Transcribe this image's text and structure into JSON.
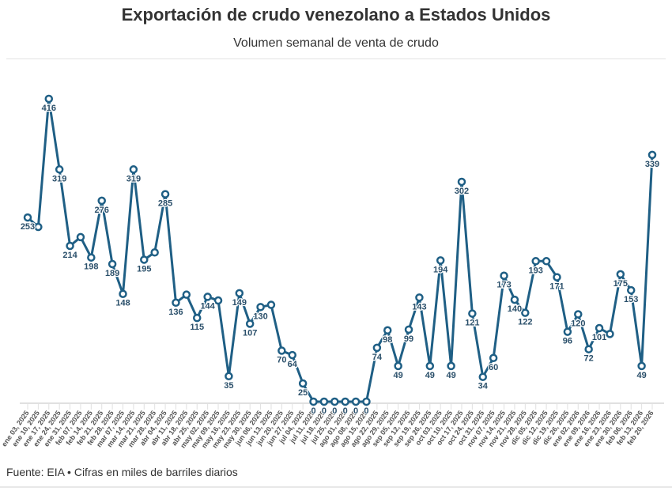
{
  "header": {
    "title": "Exportación de crudo venezolano a Estados Unidos",
    "subtitle": "Volumen semanal de venta de crudo"
  },
  "footer": {
    "source": "Fuente: EIA • Cifras en miles de barriles diarios"
  },
  "colors": {
    "line": "#1f5f85",
    "label": "#2a4f6a",
    "grid": "#e0e0e0"
  },
  "chart_data": {
    "type": "line",
    "title": "Exportación de crudo venezolano a Estados Unidos",
    "subtitle": "Volumen semanal de venta de crudo",
    "xlabel": "",
    "ylabel": "",
    "ylim": [
      0,
      416
    ],
    "grid": false,
    "markers": "hollow-circle",
    "categories": [
      "ene 03, 2025",
      "ene 10, 2025",
      "ene 17, 2025",
      "ene 24, 2025",
      "ene 31, 2025",
      "feb 07, 2025",
      "feb 14, 2025",
      "feb 21, 2025",
      "feb 28, 2025",
      "mar 07, 2025",
      "mar 14, 2025",
      "mar 21, 2025",
      "mar 28, 2025",
      "abr 04, 2025",
      "abr 11, 2025",
      "abr 18, 2025",
      "abr 25, 2025",
      "may 02, 2025",
      "may 09, 2025",
      "may 16, 2025",
      "may 23, 2025",
      "may 30, 2025",
      "jun 06, 2025",
      "jun 13, 2025",
      "jun 20, 2025",
      "jun 27, 2025",
      "jul 04, 2025",
      "jul 11, 2025",
      "jul 18, 2025",
      "jul 25, 2025",
      "ago 01, 2025",
      "ago 08, 2025",
      "ago 15, 2025",
      "ago 22, 2025",
      "ago 29, 2025",
      "sep 05, 2025",
      "sep 12, 2025",
      "sep 19, 2025",
      "sep 26, 2025",
      "oct 03, 2025",
      "oct 10, 2025",
      "oct 17, 2025",
      "oct 24, 2025",
      "oct 31, 2025",
      "nov 07, 2025",
      "nov 14, 2025",
      "nov 21, 2025",
      "nov 28, 2025",
      "dic 05, 2025",
      "dic 12, 2025",
      "dic 19, 2025",
      "dic 26, 2025",
      "ene 02, 2026",
      "ene 09, 2026",
      "ene 16, 2026",
      "ene 23, 2026",
      "ene 30, 2026",
      "feb 06, 2026",
      "feb 13, 2026",
      "feb 20, 2026"
    ],
    "values": [
      253,
      240,
      416,
      319,
      214,
      226,
      198,
      276,
      189,
      148,
      319,
      195,
      205,
      285,
      136,
      147,
      115,
      144,
      139,
      35,
      149,
      107,
      130,
      133,
      70,
      64,
      25,
      0,
      0,
      0,
      0,
      0,
      0,
      74,
      98,
      49,
      99,
      143,
      49,
      194,
      49,
      302,
      121,
      34,
      60,
      173,
      140,
      122,
      193,
      193,
      171,
      96,
      120,
      72,
      101,
      93,
      175,
      153,
      49,
      339
    ],
    "data_labels": [
      "253",
      null,
      "416",
      "319",
      "214",
      null,
      "198",
      "276",
      "189",
      "148",
      "319",
      "195",
      null,
      "285",
      "136",
      null,
      "115",
      "144",
      null,
      "35",
      "149",
      "107",
      "130",
      null,
      "70",
      "64",
      "25",
      "0",
      "0",
      "0",
      "0",
      "0",
      "0",
      "74",
      "98",
      "49",
      "99",
      "143",
      "49",
      "194",
      "49",
      "302",
      "121",
      "34",
      "60",
      "173",
      "140",
      "122",
      "193",
      null,
      "171",
      "96",
      "120",
      "72",
      "101",
      null,
      "175",
      "153",
      "49",
      "339"
    ]
  }
}
